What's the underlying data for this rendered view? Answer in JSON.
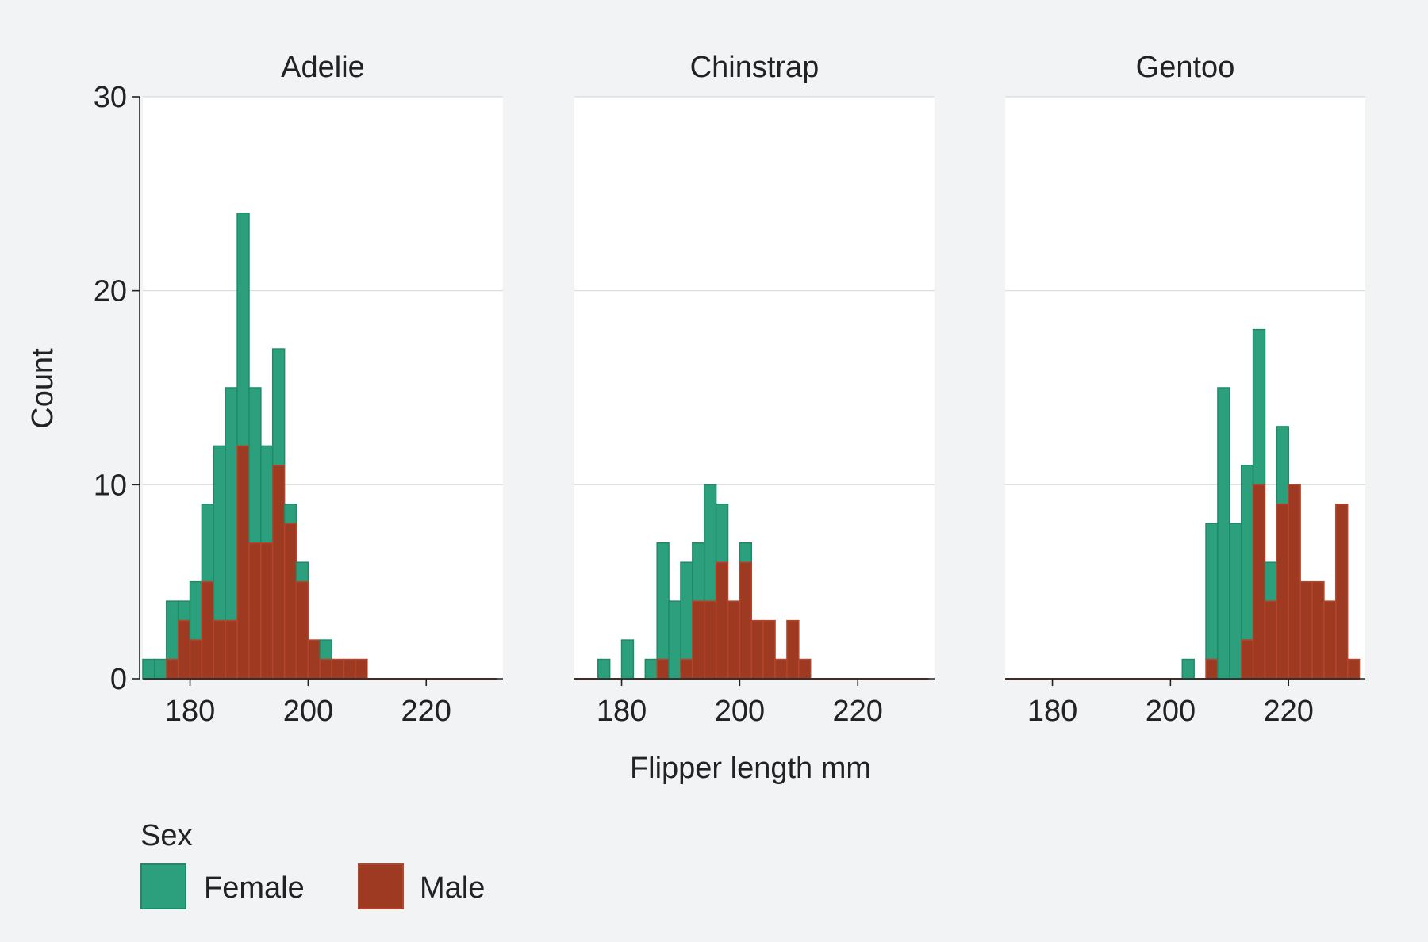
{
  "chart_data": {
    "type": "bar",
    "stacked": true,
    "facets": [
      {
        "title": "Adelie",
        "x": [
          173,
          175,
          177,
          179,
          181,
          183,
          185,
          187,
          189,
          191,
          193,
          195,
          197,
          199,
          201,
          203,
          205,
          207,
          209,
          211,
          213,
          215,
          217,
          219,
          221,
          223,
          225,
          227,
          229,
          231
        ],
        "series": [
          {
            "name": "Female",
            "values": [
              1,
              1,
              3,
              1,
              3,
              4,
              9,
              12,
              12,
              8,
              5,
              6,
              1,
              1,
              0,
              1,
              0,
              0,
              0,
              0,
              0,
              0,
              0,
              0,
              0,
              0,
              0,
              0,
              0,
              0
            ]
          },
          {
            "name": "Male",
            "values": [
              0,
              0,
              1,
              3,
              2,
              5,
              3,
              3,
              12,
              7,
              7,
              11,
              8,
              5,
              2,
              1,
              1,
              1,
              1,
              0,
              0,
              0,
              0,
              0,
              0,
              0,
              0,
              0,
              0,
              0
            ]
          }
        ]
      },
      {
        "title": "Chinstrap",
        "x": [
          173,
          175,
          177,
          179,
          181,
          183,
          185,
          187,
          189,
          191,
          193,
          195,
          197,
          199,
          201,
          203,
          205,
          207,
          209,
          211,
          213,
          215,
          217,
          219,
          221,
          223,
          225,
          227,
          229,
          231
        ],
        "series": [
          {
            "name": "Female",
            "values": [
              0,
              0,
              1,
              0,
              2,
              0,
              1,
              6,
              4,
              5,
              3,
              6,
              3,
              0,
              1,
              0,
              0,
              0,
              0,
              0,
              0,
              0,
              0,
              0,
              0,
              0,
              0,
              0,
              0,
              0
            ]
          },
          {
            "name": "Male",
            "values": [
              0,
              0,
              0,
              0,
              0,
              0,
              0,
              1,
              0,
              1,
              4,
              4,
              6,
              4,
              6,
              3,
              3,
              1,
              3,
              1,
              0,
              0,
              0,
              0,
              0,
              0,
              0,
              0,
              0,
              0
            ]
          }
        ]
      },
      {
        "title": "Gentoo",
        "x": [
          173,
          175,
          177,
          179,
          181,
          183,
          185,
          187,
          189,
          191,
          193,
          195,
          197,
          199,
          201,
          203,
          205,
          207,
          209,
          211,
          213,
          215,
          217,
          219,
          221,
          223,
          225,
          227,
          229,
          231
        ],
        "series": [
          {
            "name": "Female",
            "values": [
              0,
              0,
              0,
              0,
              0,
              0,
              0,
              0,
              0,
              0,
              0,
              0,
              0,
              0,
              0,
              1,
              0,
              7,
              15,
              8,
              9,
              8,
              2,
              4,
              0,
              0,
              0,
              0,
              0,
              0
            ]
          },
          {
            "name": "Male",
            "values": [
              0,
              0,
              0,
              0,
              0,
              0,
              0,
              0,
              0,
              0,
              0,
              0,
              0,
              0,
              0,
              0,
              0,
              1,
              0,
              0,
              2,
              10,
              4,
              9,
              10,
              5,
              5,
              4,
              9,
              1
            ]
          }
        ]
      }
    ],
    "xlabel": "Flipper length mm",
    "ylabel": "Count",
    "xlim": [
      172,
      233
    ],
    "ylim": [
      0,
      30
    ],
    "x_ticks": [
      180,
      200,
      220
    ],
    "y_ticks": [
      0,
      10,
      20,
      30
    ],
    "legend": {
      "title": "Sex",
      "position": "bottom-left",
      "entries": [
        {
          "name": "Female",
          "color": "#2ca07c"
        },
        {
          "name": "Male",
          "color": "#9e3a22"
        }
      ]
    },
    "colors": {
      "Female": "#2ca07c",
      "Male": "#9e3a22",
      "background": "#f2f3f5",
      "panel": "#ffffff"
    },
    "grid": true
  }
}
